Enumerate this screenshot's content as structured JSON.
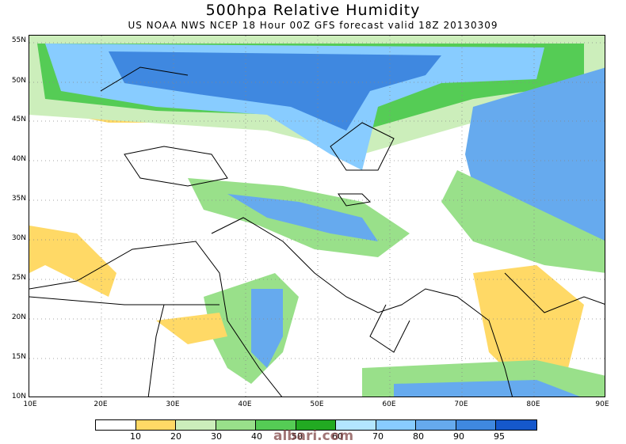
{
  "title": "500hpa Relative Humidity",
  "subtitle": "US NOAA NWS NCEP 18 Hour 00Z GFS forecast valid 18Z 20130309",
  "lat_labels": [
    "55N",
    "50N",
    "45N",
    "40N",
    "35N",
    "30N",
    "25N",
    "20N",
    "15N",
    "10N"
  ],
  "lon_labels": [
    "10E",
    "20E",
    "30E",
    "40E",
    "50E",
    "60E",
    "70E",
    "80E",
    "90E"
  ],
  "legend": {
    "colors": [
      "#ffffff",
      "#ffd966",
      "#cceebb",
      "#99e08a",
      "#55cc55",
      "#22aa22",
      "#b3e6ff",
      "#88ccff",
      "#66aaee",
      "#3f88e0",
      "#1558cc"
    ],
    "labels": [
      "10",
      "20",
      "30",
      "40",
      "50",
      "60",
      "70",
      "80",
      "90",
      "95"
    ]
  },
  "watermark": "albari.com"
}
